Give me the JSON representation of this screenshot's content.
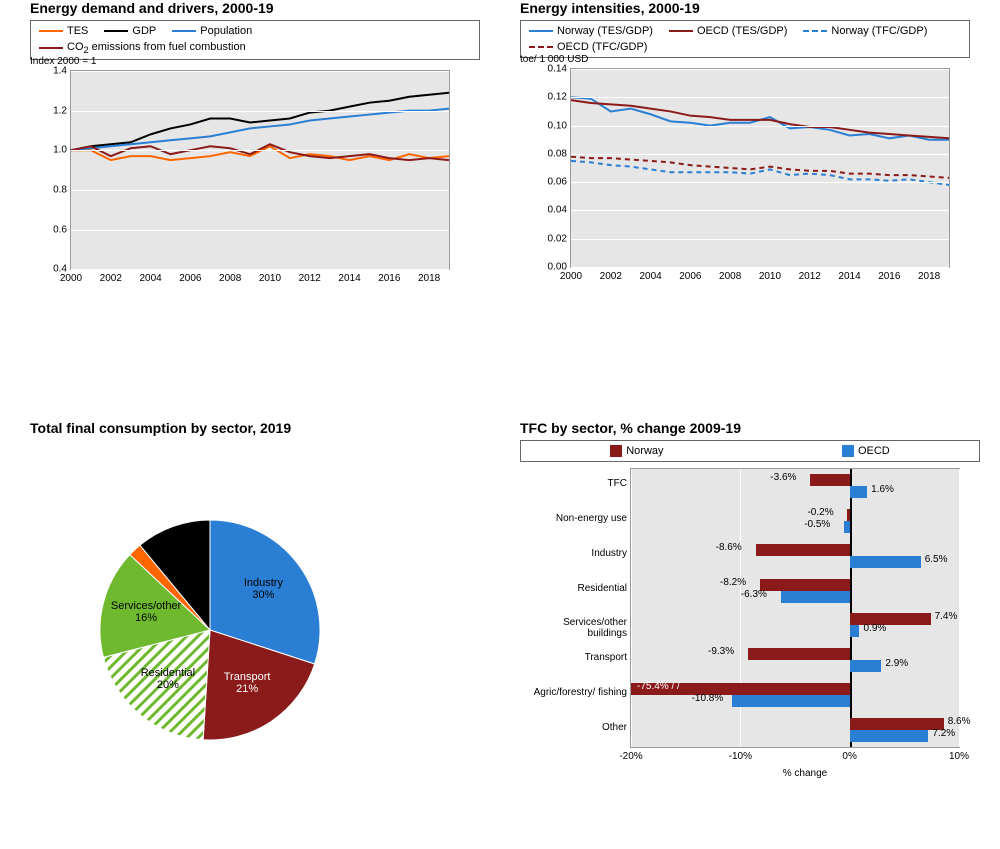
{
  "chart1": {
    "title": "Energy demand and drivers, 2000-19",
    "legend": [
      {
        "label": "TES",
        "color": "#ff6600"
      },
      {
        "label": "GDP",
        "color": "#000000"
      },
      {
        "label": "Population",
        "color": "#2a7fd4"
      },
      {
        "label_html": "CO<sub>2</sub> emissions from fuel combustion",
        "color": "#8b1a1a"
      }
    ],
    "y_axis_title": "Index 2000 = 1",
    "y_min": 0.4,
    "y_max": 1.4,
    "y_step": 0.2,
    "x_min": 2000,
    "x_max": 2018,
    "x_step": 2,
    "years": [
      2000,
      2001,
      2002,
      2003,
      2004,
      2005,
      2006,
      2007,
      2008,
      2009,
      2010,
      2011,
      2012,
      2013,
      2014,
      2015,
      2016,
      2017,
      2018,
      2019
    ],
    "series": {
      "tes": [
        1.0,
        1.0,
        0.95,
        0.97,
        0.97,
        0.95,
        0.96,
        0.97,
        0.99,
        0.97,
        1.02,
        0.96,
        0.98,
        0.97,
        0.95,
        0.97,
        0.95,
        0.98,
        0.96,
        0.97
      ],
      "gdp": [
        1.0,
        1.02,
        1.03,
        1.04,
        1.08,
        1.11,
        1.13,
        1.16,
        1.16,
        1.14,
        1.15,
        1.16,
        1.19,
        1.2,
        1.22,
        1.24,
        1.25,
        1.27,
        1.28,
        1.29
      ],
      "population": [
        1.0,
        1.01,
        1.02,
        1.03,
        1.04,
        1.05,
        1.06,
        1.07,
        1.09,
        1.11,
        1.12,
        1.13,
        1.15,
        1.16,
        1.17,
        1.18,
        1.19,
        1.2,
        1.2,
        1.21
      ],
      "co2": [
        1.0,
        1.02,
        0.97,
        1.01,
        1.02,
        0.98,
        1.0,
        1.02,
        1.01,
        0.98,
        1.03,
        0.99,
        0.97,
        0.96,
        0.97,
        0.98,
        0.96,
        0.95,
        0.96,
        0.95
      ]
    },
    "colors": {
      "tes": "#ff6600",
      "gdp": "#000000",
      "population": "#2a7fd4",
      "co2": "#8b1a1a"
    }
  },
  "chart2": {
    "title": "Energy intensities, 2000-19",
    "legend": [
      {
        "label": "Norway (TES/GDP)",
        "color": "#2a7fd4",
        "dash": false
      },
      {
        "label": "OECD (TES/GDP)",
        "color": "#8b1a1a",
        "dash": false
      },
      {
        "label": "Norway (TFC/GDP)",
        "color": "#2a7fd4",
        "dash": true
      },
      {
        "label": "OECD (TFC/GDP)",
        "color": "#8b1a1a",
        "dash": true
      }
    ],
    "y_axis_title": "toe/ 1 000 USD",
    "y_min": 0,
    "y_max": 0.14,
    "y_step": 0.02,
    "x_min": 2000,
    "x_max": 2018,
    "x_step": 2,
    "years": [
      2000,
      2001,
      2002,
      2003,
      2004,
      2005,
      2006,
      2007,
      2008,
      2009,
      2010,
      2011,
      2012,
      2013,
      2014,
      2015,
      2016,
      2017,
      2018,
      2019
    ],
    "series": {
      "nor_tes": [
        0.12,
        0.119,
        0.11,
        0.112,
        0.108,
        0.103,
        0.102,
        0.1,
        0.102,
        0.102,
        0.106,
        0.098,
        0.099,
        0.097,
        0.093,
        0.094,
        0.091,
        0.093,
        0.09,
        0.09
      ],
      "oecd_tes": [
        0.118,
        0.116,
        0.115,
        0.114,
        0.112,
        0.11,
        0.107,
        0.106,
        0.104,
        0.104,
        0.104,
        0.101,
        0.099,
        0.099,
        0.097,
        0.095,
        0.094,
        0.093,
        0.092,
        0.091
      ],
      "nor_tfc": [
        0.075,
        0.074,
        0.072,
        0.071,
        0.069,
        0.067,
        0.067,
        0.067,
        0.067,
        0.066,
        0.069,
        0.065,
        0.066,
        0.065,
        0.062,
        0.062,
        0.061,
        0.062,
        0.06,
        0.058
      ],
      "oecd_tfc": [
        0.078,
        0.077,
        0.077,
        0.076,
        0.075,
        0.074,
        0.072,
        0.071,
        0.07,
        0.069,
        0.071,
        0.069,
        0.068,
        0.068,
        0.066,
        0.066,
        0.065,
        0.065,
        0.064,
        0.063
      ]
    },
    "colors": {
      "nor_tes": "#2a7fd4",
      "oecd_tes": "#8b1a1a",
      "nor_tfc": "#2a7fd4",
      "oecd_tfc": "#8b1a1a"
    },
    "dashes": {
      "nor_tes": false,
      "oecd_tes": false,
      "nor_tfc": true,
      "oecd_tfc": true
    }
  },
  "pie": {
    "title": "Total final consumption by sector, 2019",
    "slices": [
      {
        "label": "Industry",
        "pct": 30,
        "color": "#2a7fd4",
        "pattern": false
      },
      {
        "label": "Transport",
        "pct": 21,
        "color": "#8b1a1a",
        "pattern": false
      },
      {
        "label": "Residential",
        "pct": 20,
        "color": "#6fb92f",
        "pattern": true
      },
      {
        "label": "Services/other",
        "pct": 16,
        "color": "#6fb92f",
        "pattern": false
      },
      {
        "label": "Agric/forestry/fishing",
        "pct": 2,
        "color": "#ff6600",
        "pattern": false
      },
      {
        "label": "Non-energy use",
        "pct": 11,
        "color": "#000000",
        "pattern": false
      }
    ]
  },
  "bars": {
    "title": "TFC by sector, % change 2009-19",
    "legend": [
      {
        "label": "Norway",
        "color": "#8b1a1a"
      },
      {
        "label": "OECD",
        "color": "#2a7fd4"
      }
    ],
    "x_min": -20,
    "x_max": 10,
    "x_step": 10,
    "categories": [
      {
        "label": "TFC",
        "norway": -3.6,
        "oecd": 1.6
      },
      {
        "label": "Non-energy use",
        "norway": -0.2,
        "oecd": -0.5
      },
      {
        "label": "Industry",
        "norway": -8.6,
        "oecd": 6.5
      },
      {
        "label": "Residential",
        "norway": -8.2,
        "oecd": -6.3
      },
      {
        "label": "Services/other buildings",
        "norway": 7.4,
        "oecd": 0.9
      },
      {
        "label": "Transport",
        "norway": -9.3,
        "oecd": 2.9
      },
      {
        "label": "Agric/forestry/\nfishing",
        "norway": -75.4,
        "oecd": -10.8,
        "clipped": true
      },
      {
        "label": "Other",
        "norway": 8.6,
        "oecd": 7.2
      }
    ]
  }
}
